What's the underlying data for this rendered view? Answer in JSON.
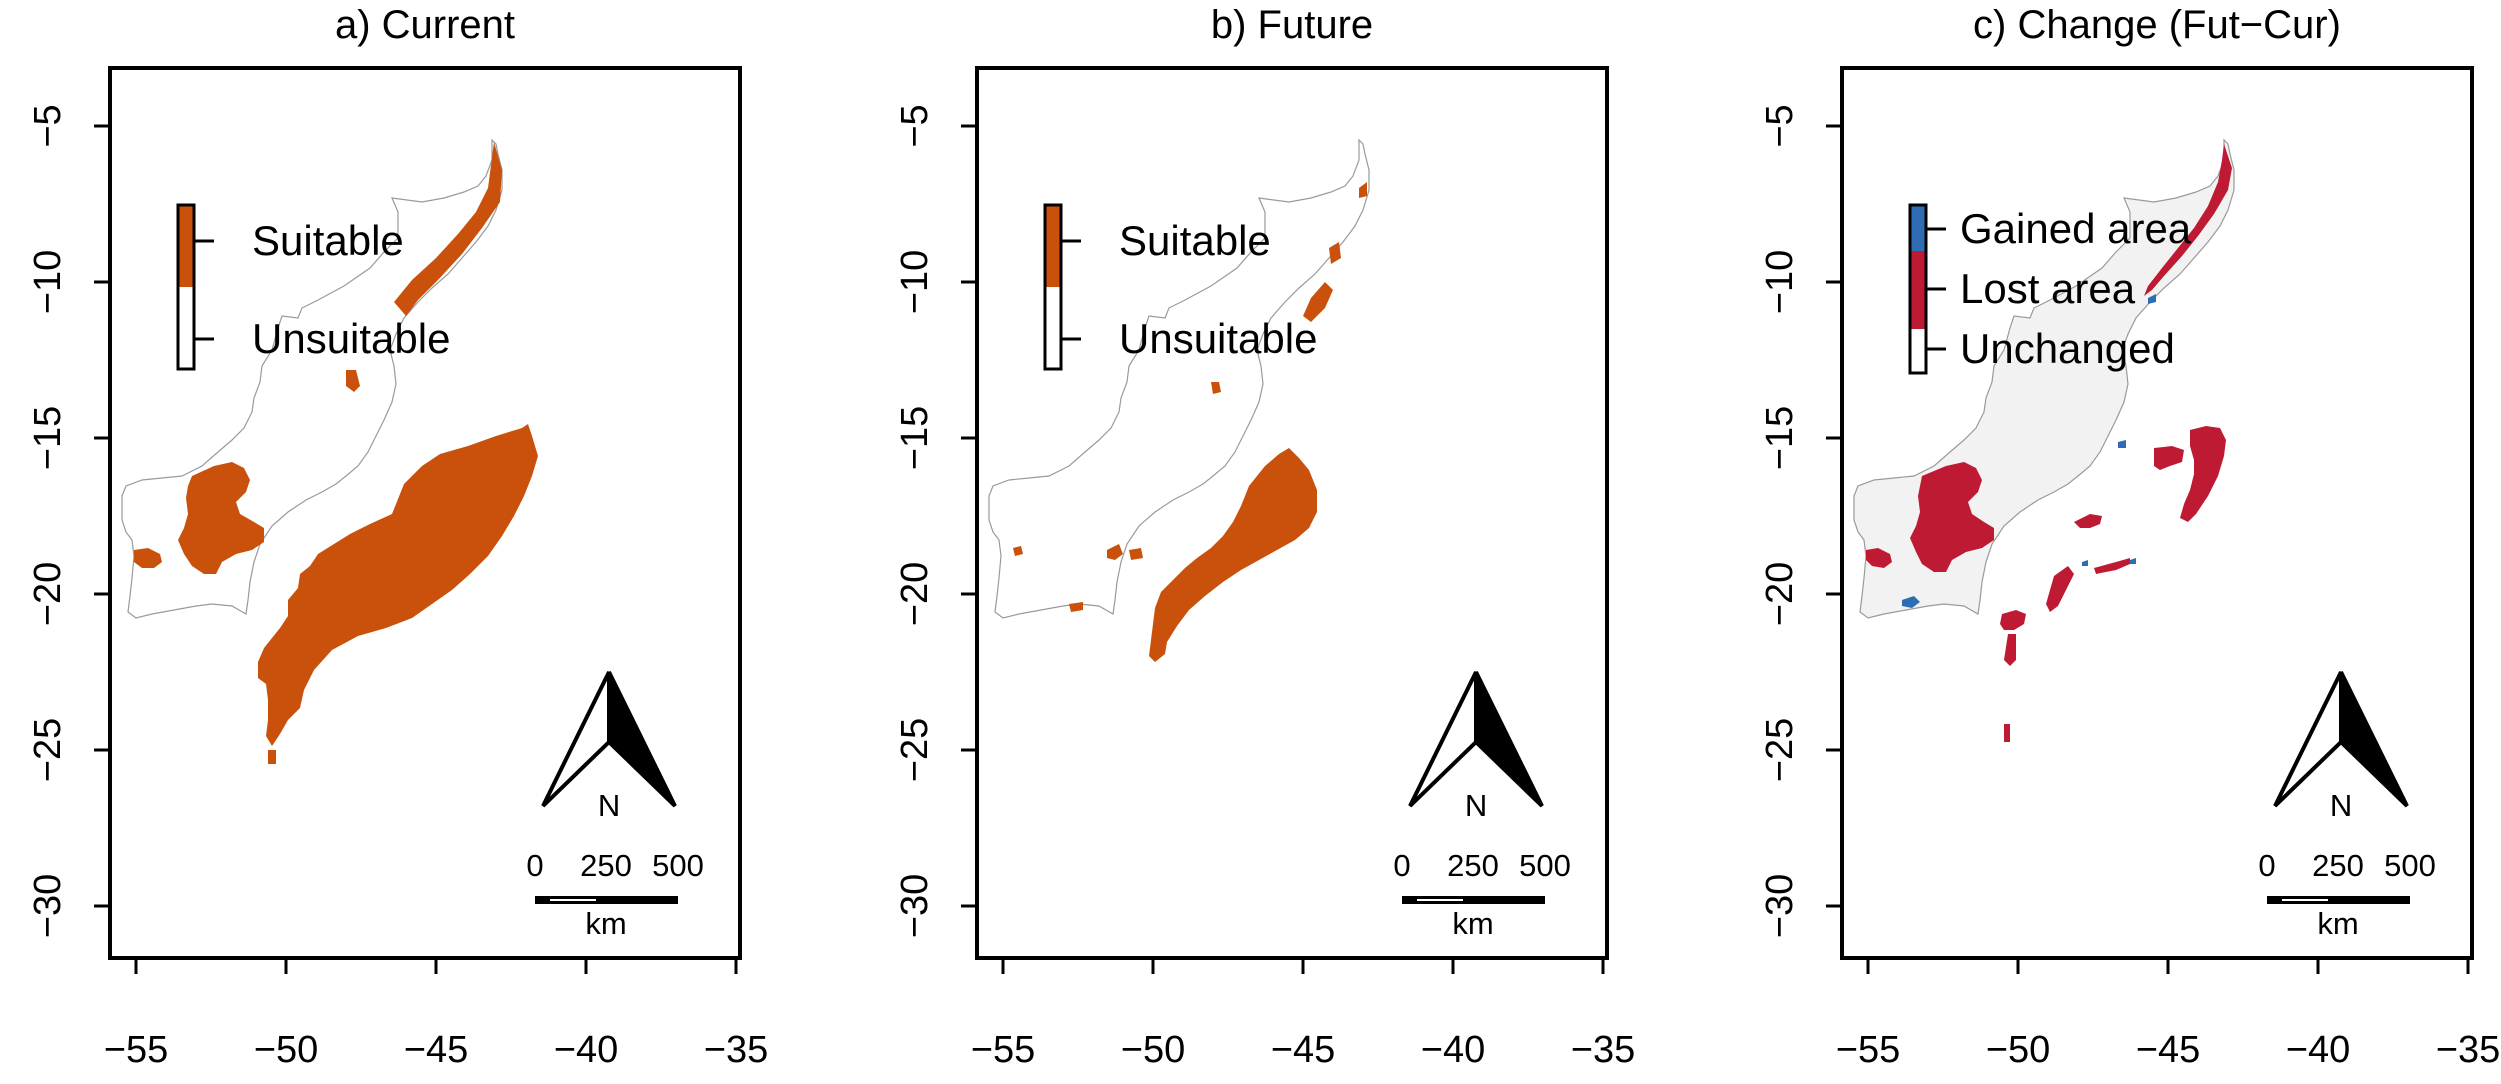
{
  "colors": {
    "suitable": "#C9510C",
    "gained": "#2E6DB4",
    "lost": "#BE1A33",
    "unchanged": "#F2F2F2",
    "coast": "#9A9A9A"
  },
  "axes": {
    "x_ticks": [
      "−55",
      "−50",
      "−45",
      "−40",
      "−35"
    ],
    "y_ticks": [
      "−5",
      "−10",
      "−15",
      "−20",
      "−25",
      "−30"
    ]
  },
  "scalebar": {
    "labels": [
      "0",
      "250",
      "500"
    ],
    "unit": "km"
  },
  "north_label": "N",
  "panels": [
    {
      "title": "a) Current",
      "legend": [
        "Suitable",
        "Unsuitable"
      ]
    },
    {
      "title": "b) Future",
      "legend": [
        "Suitable",
        "Unsuitable"
      ]
    },
    {
      "title": "c) Change (Fut−Cur)",
      "legend": [
        "Gained area",
        "Lost area",
        "Unchanged"
      ]
    }
  ]
}
